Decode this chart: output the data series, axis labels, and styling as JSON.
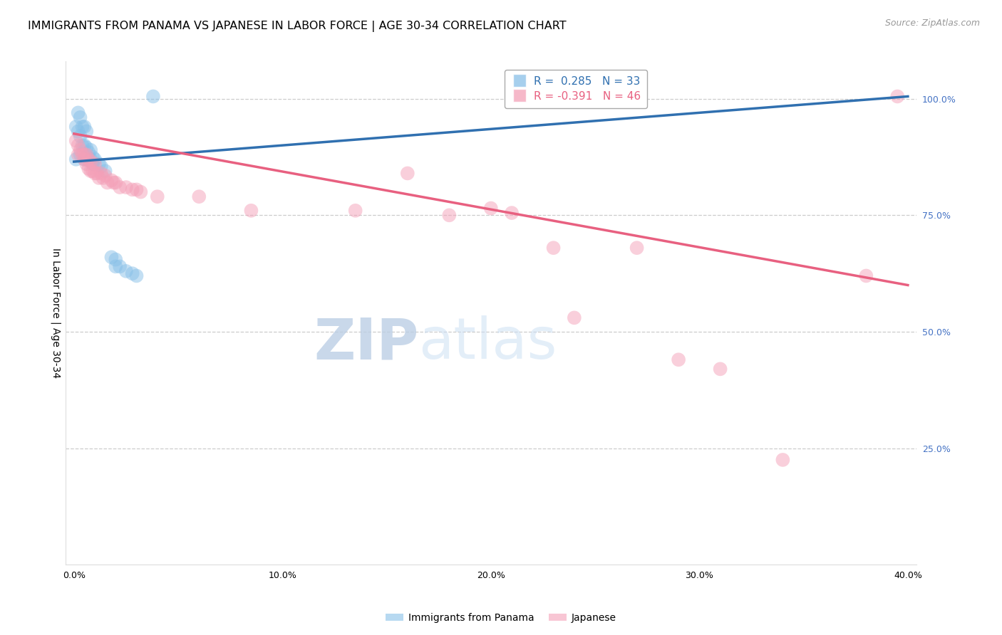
{
  "title": "IMMIGRANTS FROM PANAMA VS JAPANESE IN LABOR FORCE | AGE 30-34 CORRELATION CHART",
  "source": "Source: ZipAtlas.com",
  "ylabel": "In Labor Force | Age 30-34",
  "xlim": [
    -0.004,
    0.404
  ],
  "ylim": [
    0.0,
    1.08
  ],
  "xtick_positions": [
    0.0,
    0.1,
    0.2,
    0.3,
    0.4
  ],
  "xtick_labels": [
    "0.0%",
    "10.0%",
    "20.0%",
    "30.0%",
    "40.0%"
  ],
  "yticks_right": [
    0.25,
    0.5,
    0.75,
    1.0
  ],
  "ytick_labels_right": [
    "25.0%",
    "50.0%",
    "75.0%",
    "100.0%"
  ],
  "grid_color": "#cccccc",
  "background_color": "#ffffff",
  "blue_color": "#88c0e8",
  "pink_color": "#f4a0b8",
  "blue_line_color": "#3070b0",
  "pink_line_color": "#e86080",
  "legend_R_blue": " 0.285",
  "legend_N_blue": "33",
  "legend_R_pink": "-0.391",
  "legend_N_pink": "46",
  "legend_blue_label": "Immigrants from Panama",
  "legend_pink_label": "Japanese",
  "title_fontsize": 11.5,
  "axis_label_fontsize": 10,
  "tick_fontsize": 9,
  "legend_fontsize": 11,
  "source_fontsize": 9,
  "panama_x": [
    0.001,
    0.001,
    0.002,
    0.002,
    0.003,
    0.003,
    0.003,
    0.004,
    0.004,
    0.005,
    0.005,
    0.005,
    0.006,
    0.006,
    0.006,
    0.007,
    0.007,
    0.008,
    0.008,
    0.009,
    0.009,
    0.01,
    0.012,
    0.013,
    0.015,
    0.018,
    0.02,
    0.022,
    0.02,
    0.025,
    0.028,
    0.03,
    0.038
  ],
  "panama_y": [
    0.87,
    0.94,
    0.93,
    0.97,
    0.88,
    0.92,
    0.96,
    0.9,
    0.94,
    0.87,
    0.9,
    0.94,
    0.87,
    0.895,
    0.93,
    0.87,
    0.885,
    0.87,
    0.89,
    0.86,
    0.875,
    0.87,
    0.86,
    0.855,
    0.845,
    0.66,
    0.655,
    0.64,
    0.64,
    0.63,
    0.625,
    0.62,
    1.005
  ],
  "japanese_x": [
    0.001,
    0.002,
    0.002,
    0.003,
    0.004,
    0.005,
    0.005,
    0.006,
    0.006,
    0.007,
    0.007,
    0.008,
    0.008,
    0.009,
    0.01,
    0.01,
    0.011,
    0.012,
    0.013,
    0.014,
    0.015,
    0.016,
    0.018,
    0.019,
    0.02,
    0.022,
    0.025,
    0.028,
    0.03,
    0.032,
    0.04,
    0.06,
    0.085,
    0.135,
    0.16,
    0.18,
    0.2,
    0.21,
    0.23,
    0.24,
    0.27,
    0.29,
    0.31,
    0.34,
    0.38,
    0.395
  ],
  "japanese_y": [
    0.91,
    0.88,
    0.9,
    0.89,
    0.88,
    0.87,
    0.88,
    0.86,
    0.88,
    0.85,
    0.87,
    0.845,
    0.865,
    0.845,
    0.84,
    0.86,
    0.84,
    0.83,
    0.84,
    0.83,
    0.835,
    0.82,
    0.825,
    0.82,
    0.82,
    0.81,
    0.81,
    0.805,
    0.805,
    0.8,
    0.79,
    0.79,
    0.76,
    0.76,
    0.84,
    0.75,
    0.765,
    0.755,
    0.68,
    0.53,
    0.68,
    0.44,
    0.42,
    0.225,
    0.62,
    1.005
  ]
}
